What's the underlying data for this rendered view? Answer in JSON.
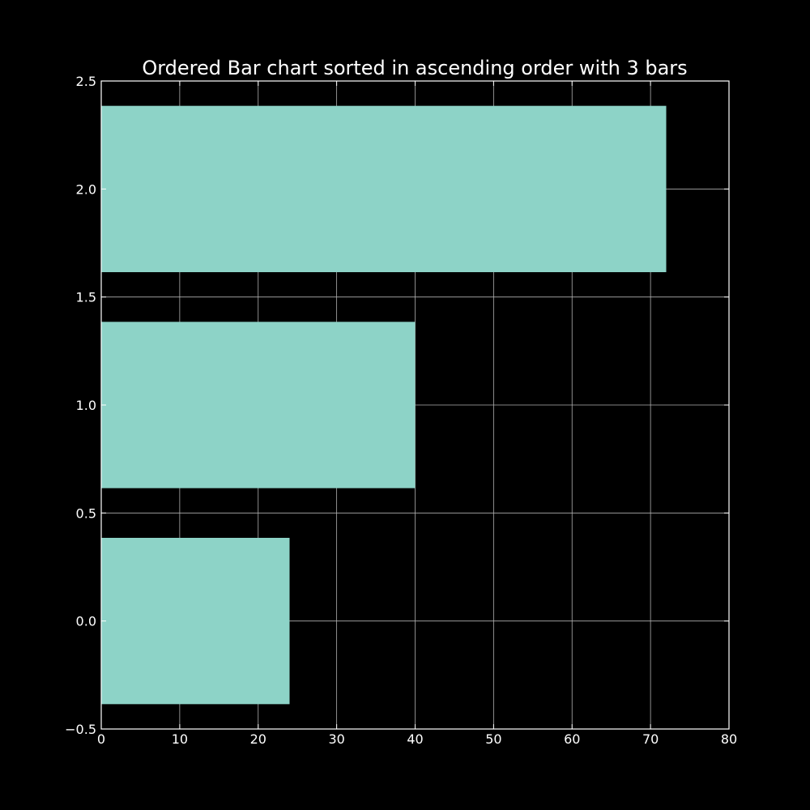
{
  "chart_data": {
    "type": "bar",
    "orientation": "horizontal",
    "title": "Ordered Bar chart sorted in ascending order with 3 bars",
    "xlabel": "",
    "ylabel": "",
    "y": [
      0,
      1,
      2
    ],
    "values": [
      24,
      40,
      72
    ],
    "bar_height": 0.77,
    "xlim": [
      0,
      80
    ],
    "ylim": [
      -0.5,
      2.5
    ],
    "xticks": [
      0,
      10,
      20,
      30,
      40,
      50,
      60,
      70,
      80
    ],
    "yticks": [
      -0.5,
      0.0,
      0.5,
      1.0,
      1.5,
      2.0,
      2.5
    ],
    "xtick_labels": [
      "0",
      "10",
      "20",
      "30",
      "40",
      "50",
      "60",
      "70",
      "80"
    ],
    "ytick_labels": [
      "−0.5",
      "0.0",
      "0.5",
      "1.0",
      "1.5",
      "2.0",
      "2.5"
    ],
    "grid": true,
    "bar_color": "#8dd3c7",
    "background": "#000000",
    "axis_color": "#ffffff",
    "grid_color": "#b0b0b0"
  }
}
